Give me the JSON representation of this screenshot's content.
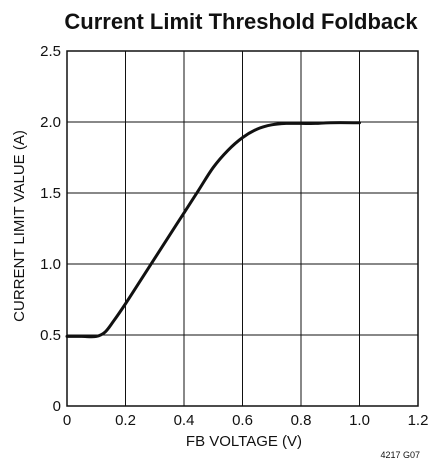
{
  "chart_data": {
    "type": "line",
    "title": "Current Limit Threshold Foldback",
    "xlabel": "FB VOLTAGE (V)",
    "ylabel": "CURRENT LIMIT VALUE (A)",
    "xlim": [
      0,
      1.2
    ],
    "ylim": [
      0,
      2.5
    ],
    "xticks": [
      "0",
      "0.2",
      "0.4",
      "0.6",
      "0.8",
      "1.0",
      "1.2"
    ],
    "yticks": [
      "0",
      "0.5",
      "1.0",
      "1.5",
      "2.0",
      "2.5"
    ],
    "grid": true,
    "series": [
      {
        "x": [
          0,
          0.05,
          0.1,
          0.13,
          0.16,
          0.2,
          0.25,
          0.3,
          0.35,
          0.4,
          0.45,
          0.5,
          0.55,
          0.6,
          0.65,
          0.7,
          0.75,
          0.8,
          0.85,
          0.9,
          1.0
        ],
        "y": [
          0.49,
          0.49,
          0.49,
          0.52,
          0.6,
          0.72,
          0.88,
          1.04,
          1.2,
          1.36,
          1.52,
          1.68,
          1.8,
          1.89,
          1.95,
          1.98,
          1.99,
          1.99,
          1.99,
          1.995,
          1.995
        ]
      }
    ],
    "figure_id": "4217 G07"
  }
}
